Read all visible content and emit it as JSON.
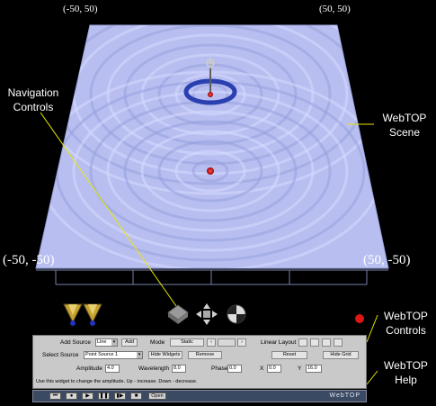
{
  "corners": {
    "top_left": "(-50, 50)",
    "top_right": "(50, 50)",
    "bottom_left": "(-50, -50)",
    "bottom_right": "(50, -50)"
  },
  "callouts": {
    "navigation": [
      "Navigation",
      "Controls"
    ],
    "scene": [
      "WebTOP",
      "Scene"
    ],
    "controls": [
      "WebTOP",
      "Controls"
    ],
    "help": [
      "WebTOP",
      "Help"
    ]
  },
  "colors": {
    "water": "#b8bff0",
    "callout_line": "#e8e800",
    "source_marker": "#ff2020",
    "ring": "#2a3fb0"
  },
  "nav_icons": [
    "lamp-left-icon",
    "lamp-right-icon",
    "pan-icon",
    "fly-icon",
    "examine-icon"
  ],
  "controls": {
    "add_source_label": "Add Source",
    "add_source_value": "Line",
    "add_button": "Add",
    "mode_label": "Mode",
    "mode_value": "Static",
    "linear_layout_label": "Linear Layout",
    "select_source_label": "Select Source",
    "select_source_value": "Point Source 1",
    "hide_widgets_button": "Hide Widgets",
    "remove_button": "Remove",
    "reset_button": "Reset",
    "hide_grid_button": "Hide Grid",
    "amplitude_label": "Amplitude",
    "amplitude_value": "4.0",
    "wavelength_label": "Wavelength",
    "wavelength_value": "8.0",
    "phase_label": "Phase",
    "phase_value": "0.0",
    "x_label": "X",
    "x_value": "0.0",
    "y_label": "Y",
    "y_value": "16.0",
    "help_text": "Use this widget to change the amplitude.  Up - increase. Down - decrease."
  },
  "player": {
    "open_button": "Open",
    "brand": "WebTOP"
  }
}
